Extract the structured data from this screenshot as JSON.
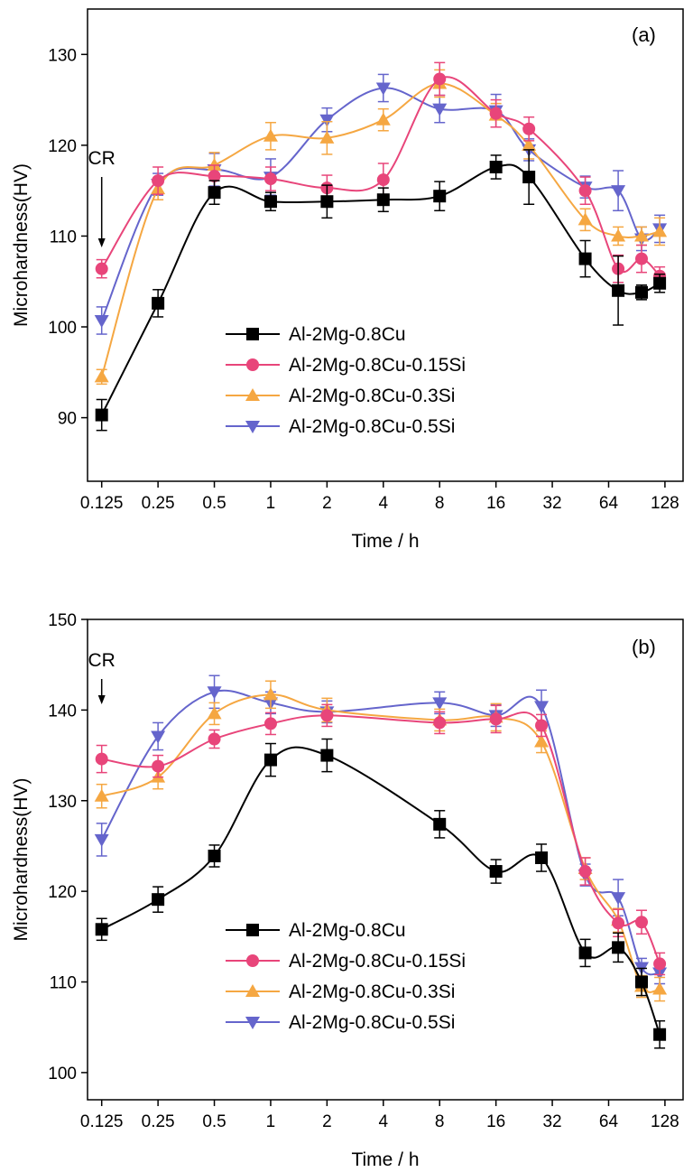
{
  "chart_data": [
    {
      "type": "line",
      "panel_label": "(a)",
      "annotation": "CR",
      "xlabel": "Time / h",
      "ylabel": "Microhardness(HV)",
      "x_scale": "log2",
      "x_ticks": [
        "0.125",
        "0.25",
        "0.5",
        "1",
        "2",
        "4",
        "8",
        "16",
        "32",
        "64",
        "128"
      ],
      "xlim": [
        0.105,
        160
      ],
      "ylim": [
        83,
        135
      ],
      "y_ticks": [
        90,
        100,
        110,
        120,
        130
      ],
      "legend": "center-left",
      "series": [
        {
          "name": "Al-2Mg-0.8Cu",
          "color": "#000000",
          "marker": "square",
          "x": [
            0.125,
            0.25,
            0.5,
            1,
            2,
            4,
            8,
            16,
            24,
            48,
            72,
            96,
            120
          ],
          "y": [
            90.3,
            102.6,
            114.8,
            113.8,
            113.8,
            114.0,
            114.4,
            117.6,
            116.5,
            107.5,
            104.0,
            103.8,
            104.8
          ],
          "err": [
            1.7,
            1.5,
            1.3,
            1.0,
            1.8,
            1.3,
            1.6,
            1.3,
            3.0,
            2.0,
            3.8,
            0.8,
            1.0
          ]
        },
        {
          "name": "Al-2Mg-0.8Cu-0.15Si",
          "color": "#e8457a",
          "marker": "circle",
          "x": [
            0.125,
            0.25,
            0.5,
            1,
            2,
            4,
            8,
            16,
            24,
            48,
            72,
            96,
            120
          ],
          "y": [
            106.4,
            116.1,
            116.6,
            116.3,
            115.3,
            116.2,
            127.3,
            123.5,
            121.8,
            115.0,
            106.4,
            107.5,
            105.6
          ],
          "err": [
            1.0,
            1.5,
            1.2,
            1.3,
            1.4,
            1.8,
            1.8,
            1.5,
            1.3,
            1.5,
            1.5,
            1.5,
            1.0
          ]
        },
        {
          "name": "Al-2Mg-0.8Cu-0.3Si",
          "color": "#f5a742",
          "marker": "triangle-up",
          "x": [
            0.125,
            0.25,
            0.5,
            1,
            2,
            4,
            8,
            16,
            24,
            48,
            72,
            96,
            120
          ],
          "y": [
            94.5,
            115.2,
            117.8,
            121.0,
            120.8,
            122.8,
            126.8,
            123.3,
            120.0,
            111.8,
            110.0,
            110.0,
            110.5
          ],
          "err": [
            0.8,
            1.2,
            1.4,
            1.5,
            1.8,
            1.2,
            1.5,
            1.3,
            1.5,
            1.2,
            1.0,
            1.0,
            1.5
          ]
        },
        {
          "name": "Al-2Mg-0.8Cu-0.5Si",
          "color": "#6565cc",
          "marker": "triangle-down",
          "x": [
            0.125,
            0.25,
            0.5,
            1,
            2,
            4,
            8,
            16,
            24,
            48,
            72,
            96,
            120
          ],
          "y": [
            100.7,
            115.7,
            117.3,
            116.5,
            122.8,
            126.3,
            124.0,
            123.8,
            119.5,
            115.4,
            115.0,
            109.7,
            110.8
          ],
          "err": [
            1.5,
            1.2,
            1.8,
            2.0,
            1.3,
            1.5,
            1.5,
            1.8,
            1.2,
            1.2,
            2.2,
            1.3,
            1.5
          ]
        }
      ]
    },
    {
      "type": "line",
      "panel_label": "(b)",
      "annotation": "CR",
      "xlabel": "Time / h",
      "ylabel": "Microhardness(HV)",
      "x_scale": "log2",
      "x_ticks": [
        "0.125",
        "0.25",
        "0.5",
        "1",
        "2",
        "4",
        "8",
        "16",
        "32",
        "64",
        "128"
      ],
      "xlim": [
        0.105,
        160
      ],
      "ylim": [
        97,
        150
      ],
      "y_ticks": [
        100,
        110,
        120,
        130,
        140,
        150
      ],
      "legend": "bottom-left",
      "series": [
        {
          "name": "Al-2Mg-0.8Cu",
          "color": "#000000",
          "marker": "square",
          "x": [
            0.125,
            0.25,
            0.5,
            1,
            2,
            8,
            16,
            28,
            48,
            72,
            96,
            120
          ],
          "y": [
            115.8,
            119.1,
            123.9,
            134.5,
            135.0,
            127.4,
            122.2,
            123.7,
            113.2,
            113.8,
            110.0,
            104.2
          ],
          "err": [
            1.2,
            1.4,
            1.2,
            1.8,
            1.8,
            1.5,
            1.3,
            1.5,
            1.5,
            1.6,
            1.5,
            1.5
          ]
        },
        {
          "name": "Al-2Mg-0.8Cu-0.15Si",
          "color": "#e8457a",
          "marker": "circle",
          "x": [
            0.125,
            0.25,
            0.5,
            1,
            2,
            8,
            16,
            28,
            48,
            72,
            96,
            120
          ],
          "y": [
            134.6,
            133.8,
            136.8,
            138.5,
            139.4,
            138.6,
            139.0,
            138.3,
            122.2,
            116.5,
            116.6,
            112.0
          ],
          "err": [
            1.5,
            1.2,
            1.0,
            1.2,
            1.2,
            1.2,
            1.5,
            1.2,
            1.5,
            1.5,
            1.3,
            1.2
          ]
        },
        {
          "name": "Al-2Mg-0.8Cu-0.3Si",
          "color": "#f5a742",
          "marker": "triangle-up",
          "x": [
            0.125,
            0.25,
            0.5,
            1,
            2,
            8,
            16,
            28,
            48,
            72,
            96,
            120
          ],
          "y": [
            130.5,
            132.6,
            139.6,
            141.7,
            140.0,
            138.9,
            139.2,
            136.5,
            122.5,
            116.8,
            109.5,
            109.2
          ],
          "err": [
            1.3,
            1.3,
            1.2,
            1.5,
            1.3,
            1.2,
            1.5,
            1.2,
            1.2,
            1.3,
            1.2,
            1.3
          ]
        },
        {
          "name": "Al-2Mg-0.8Cu-0.5Si",
          "color": "#6565cc",
          "marker": "triangle-down",
          "x": [
            0.125,
            0.25,
            0.5,
            1,
            2,
            8,
            16,
            28,
            48,
            72,
            96,
            120
          ],
          "y": [
            125.7,
            137.1,
            142.0,
            140.8,
            139.8,
            140.8,
            139.4,
            140.4,
            121.8,
            119.3,
            111.6,
            111.0
          ],
          "err": [
            1.8,
            1.5,
            1.8,
            1.2,
            1.2,
            1.2,
            1.2,
            1.8,
            1.2,
            2.0,
            1.0,
            1.2
          ]
        }
      ]
    }
  ]
}
